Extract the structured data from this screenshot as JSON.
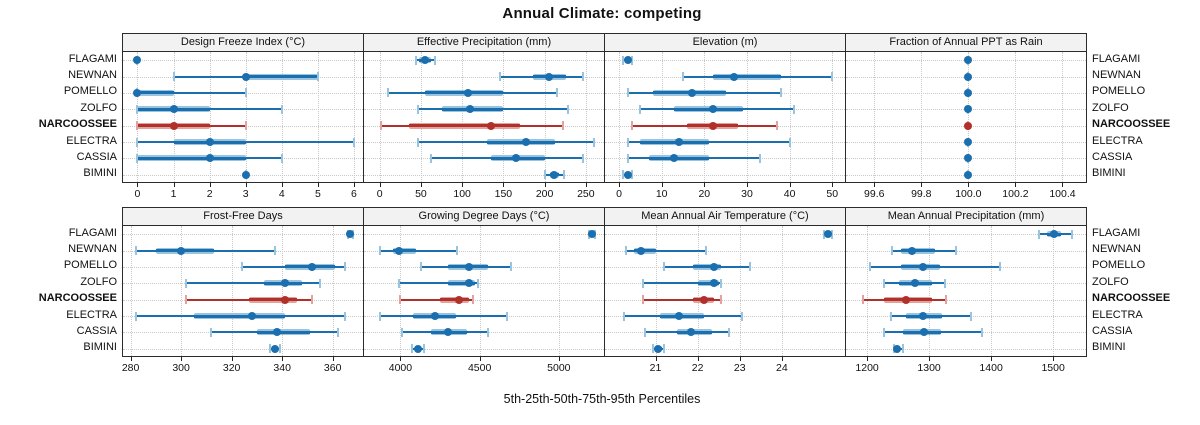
{
  "title": "Annual Climate: competing",
  "xlabel": "5th-25th-50th-75th-95th Percentiles",
  "categories": [
    "FLAGAMI",
    "NEWNAN",
    "POMELLO",
    "ZOLFO",
    "NARCOOSSEE",
    "ELECTRA",
    "CASSIA",
    "BIMINI"
  ],
  "highlighted_category": "NARCOOSSEE",
  "colors": {
    "series_dark": "#1c6fae",
    "series_light": "#99c4e0",
    "highlight_dark": "#b1312a",
    "highlight_light": "#e2a29d",
    "strip_bg": "#f2f2f2",
    "grid": "#c9c9c9",
    "border": "#2b2b2b",
    "text": "#111111"
  },
  "chart_data": {
    "type": "scatter",
    "subtype": "percentile-interval dot plot (trellis, 2 rows x 4 cols)",
    "value_format": "[p5, p25, p50, p75, p95] per category",
    "legend_position": "none",
    "grid": "dotted",
    "panels": [
      {
        "title": "Design Freeze Index (°C)",
        "row": 0,
        "col": 0,
        "xlim": [
          -0.4,
          6.25
        ],
        "ticks": [
          0,
          1,
          2,
          3,
          4,
          5,
          6
        ],
        "tick_labels": [
          "0",
          "1",
          "2",
          "3",
          "4",
          "5",
          "6"
        ],
        "values": [
          [
            0,
            0,
            0,
            0,
            0
          ],
          [
            1,
            3,
            3,
            5,
            5
          ],
          [
            0,
            0,
            0,
            1,
            3
          ],
          [
            0,
            0,
            1,
            2,
            4
          ],
          [
            0,
            0,
            1,
            2,
            3
          ],
          [
            0,
            1,
            2,
            3,
            6
          ],
          [
            0,
            0,
            2,
            3,
            4
          ],
          [
            3,
            3,
            3,
            3,
            3
          ]
        ]
      },
      {
        "title": "Effective Precipitation (mm)",
        "row": 0,
        "col": 1,
        "xlim": [
          -19,
          272
        ],
        "ticks": [
          0,
          50,
          100,
          150,
          200,
          250
        ],
        "tick_labels": [
          "0",
          "50",
          "100",
          "150",
          "200",
          "250"
        ],
        "values": [
          [
            44,
            48,
            55,
            62,
            67
          ],
          [
            146,
            186,
            205,
            226,
            246
          ],
          [
            10,
            55,
            107,
            150,
            215
          ],
          [
            46,
            76,
            110,
            150,
            228
          ],
          [
            2,
            35,
            135,
            170,
            222
          ],
          [
            46,
            130,
            177,
            212,
            260
          ],
          [
            62,
            135,
            165,
            200,
            246
          ],
          [
            200,
            206,
            211,
            217,
            223
          ]
        ]
      },
      {
        "title": "Elevation (m)",
        "row": 0,
        "col": 2,
        "xlim": [
          -3.3,
          53
        ],
        "ticks": [
          0,
          10,
          20,
          30,
          40,
          50
        ],
        "tick_labels": [
          "0",
          "10",
          "20",
          "30",
          "40",
          "50"
        ],
        "values": [
          [
            1,
            1.5,
            2,
            2.5,
            3
          ],
          [
            15,
            22,
            27,
            38,
            50
          ],
          [
            2,
            8,
            17,
            25,
            38
          ],
          [
            5,
            13,
            22,
            29,
            41
          ],
          [
            3,
            16,
            22,
            28,
            37
          ],
          [
            2,
            5,
            14,
            21,
            40
          ],
          [
            2,
            7,
            13,
            21,
            33
          ],
          [
            1,
            1.5,
            2,
            2.5,
            3
          ]
        ]
      },
      {
        "title": "Fraction of Annual PPT as Rain",
        "row": 0,
        "col": 3,
        "xlim": [
          99.48,
          100.5
        ],
        "ticks": [
          99.6,
          99.8,
          100.0,
          100.2,
          100.4
        ],
        "tick_labels": [
          "99.6",
          "99.8",
          "100.0",
          "100.2",
          "100.4"
        ],
        "values": [
          [
            100,
            100,
            100,
            100,
            100
          ],
          [
            100,
            100,
            100,
            100,
            100
          ],
          [
            100,
            100,
            100,
            100,
            100
          ],
          [
            100,
            100,
            100,
            100,
            100
          ],
          [
            100,
            100,
            100,
            100,
            100
          ],
          [
            100,
            100,
            100,
            100,
            100
          ],
          [
            100,
            100,
            100,
            100,
            100
          ],
          [
            100,
            100,
            100,
            100,
            100
          ]
        ]
      },
      {
        "title": "Frost-Free Days",
        "row": 1,
        "col": 0,
        "xlim": [
          277,
          372
        ],
        "ticks": [
          280,
          300,
          320,
          340,
          360
        ],
        "tick_labels": [
          "280",
          "300",
          "320",
          "340",
          "360"
        ],
        "values": [
          [
            366,
            366.5,
            367,
            367.5,
            368
          ],
          [
            282,
            290,
            300,
            313,
            337
          ],
          [
            324,
            341,
            352,
            361,
            365
          ],
          [
            302,
            333,
            341,
            348,
            355
          ],
          [
            302,
            327,
            341,
            346,
            352
          ],
          [
            282,
            305,
            328,
            341,
            365
          ],
          [
            312,
            330,
            338,
            351,
            362
          ],
          [
            335,
            336,
            337,
            338,
            339
          ]
        ]
      },
      {
        "title": "Growing Degree Days (°C)",
        "row": 1,
        "col": 1,
        "xlim": [
          3770,
          5285
        ],
        "ticks": [
          4000,
          4500,
          5000
        ],
        "tick_labels": [
          "4000",
          "4500",
          "5000"
        ],
        "values": [
          [
            5190,
            5200,
            5210,
            5220,
            5230
          ],
          [
            3870,
            3950,
            3990,
            4100,
            4360
          ],
          [
            4130,
            4300,
            4430,
            4550,
            4700
          ],
          [
            3990,
            4300,
            4430,
            4470,
            4490
          ],
          [
            4000,
            4250,
            4370,
            4430,
            4460
          ],
          [
            3870,
            4080,
            4220,
            4350,
            4670
          ],
          [
            4010,
            4190,
            4300,
            4420,
            4550
          ],
          [
            4070,
            4090,
            4110,
            4130,
            4150
          ]
        ]
      },
      {
        "title": "Mean Annual Air Temperature (°C)",
        "row": 1,
        "col": 2,
        "xlim": [
          19.8,
          25.5
        ],
        "ticks": [
          21,
          22,
          23,
          24
        ],
        "tick_labels": [
          "21",
          "22",
          "23",
          "24"
        ],
        "values": [
          [
            25.0,
            25.05,
            25.1,
            25.15,
            25.2
          ],
          [
            20.3,
            20.5,
            20.65,
            21.0,
            22.2
          ],
          [
            21.2,
            21.9,
            22.4,
            22.55,
            23.25
          ],
          [
            20.7,
            22.0,
            22.4,
            22.5,
            22.55
          ],
          [
            20.7,
            21.9,
            22.15,
            22.4,
            22.55
          ],
          [
            20.25,
            21.1,
            21.55,
            22.15,
            23.05
          ],
          [
            20.75,
            21.5,
            21.85,
            22.35,
            22.75
          ],
          [
            20.95,
            21.0,
            21.05,
            21.15,
            21.2
          ]
        ]
      },
      {
        "title": "Mean Annual Precipitation (mm)",
        "row": 1,
        "col": 3,
        "xlim": [
          1166,
          1553
        ],
        "ticks": [
          1200,
          1300,
          1400,
          1500
        ],
        "tick_labels": [
          "1200",
          "1300",
          "1400",
          "1500"
        ],
        "values": [
          [
            1478,
            1490,
            1501,
            1512,
            1530
          ],
          [
            1240,
            1255,
            1273,
            1310,
            1343
          ],
          [
            1204,
            1255,
            1290,
            1318,
            1415
          ],
          [
            1228,
            1252,
            1278,
            1305,
            1325
          ],
          [
            1193,
            1228,
            1262,
            1305,
            1327
          ],
          [
            1238,
            1262,
            1290,
            1320,
            1368
          ],
          [
            1228,
            1258,
            1292,
            1320,
            1385
          ],
          [
            1243,
            1246,
            1249,
            1253,
            1258
          ]
        ]
      }
    ]
  }
}
